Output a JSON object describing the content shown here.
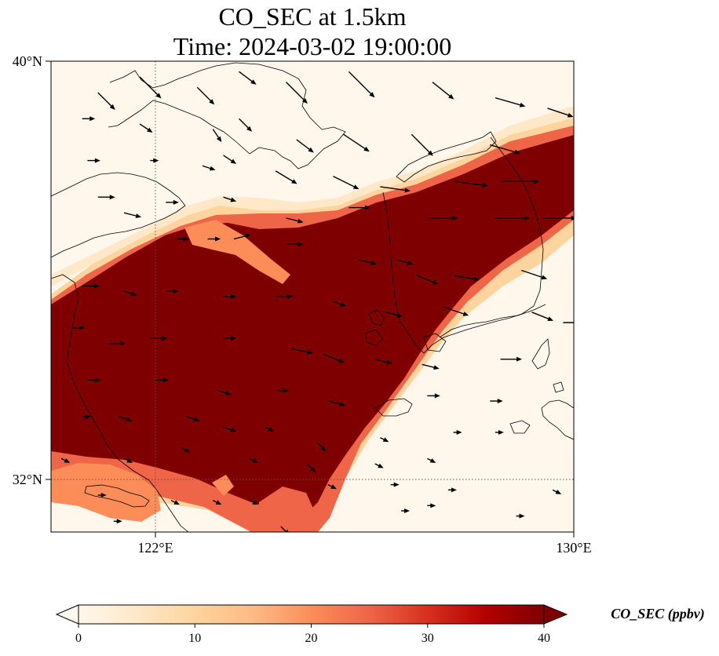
{
  "title": {
    "line1": "CO_SEC at 1.5km",
    "line2": "Time: 2024-03-02 19:00:00"
  },
  "map": {
    "lon_range": [
      120,
      130
    ],
    "lat_range": [
      31,
      40
    ],
    "lon_ticks": [
      {
        "value": 122,
        "label": "122°E"
      },
      {
        "value": 130,
        "label": "130°E"
      }
    ],
    "lat_ticks": [
      {
        "value": 40,
        "label": "40°N"
      },
      {
        "value": 32,
        "label": "32°N"
      }
    ],
    "gridlines": "dotted"
  },
  "field": {
    "variable": "CO_SEC",
    "level": "1.5km",
    "pattern": "high-concentration plume band oriented SW-NE across the Yellow Sea",
    "colormap": "OrRd"
  },
  "colorbar": {
    "label": "CO_SEC (ppbv)",
    "min": 0,
    "max": 40,
    "extend": "both",
    "ticks": [
      {
        "value": 0,
        "label": "0"
      },
      {
        "value": 10,
        "label": "10"
      },
      {
        "value": 20,
        "label": "20"
      },
      {
        "value": 30,
        "label": "30"
      },
      {
        "value": 40,
        "label": "40"
      }
    ],
    "colors": [
      "#fff7ec",
      "#fee8c8",
      "#fdd49e",
      "#fdbb84",
      "#fc8d59",
      "#ef6548",
      "#d7301f",
      "#b30000",
      "#7f0000"
    ]
  },
  "wind": {
    "note": "wind vectors predominantly westerly to northwesterly",
    "vectors": [
      [
        120.9,
        39.4,
        0.4,
        -0.4
      ],
      [
        121.7,
        39.7,
        0.5,
        -0.5
      ],
      [
        122.8,
        39.5,
        0.4,
        -0.4
      ],
      [
        123.6,
        39.8,
        0.4,
        -0.3
      ],
      [
        124.5,
        39.6,
        0.5,
        -0.5
      ],
      [
        125.7,
        39.8,
        0.6,
        -0.6
      ],
      [
        127.3,
        39.6,
        0.5,
        -0.4
      ],
      [
        128.5,
        39.3,
        0.7,
        -0.2
      ],
      [
        129.5,
        39.1,
        0.6,
        -0.2
      ],
      [
        120.6,
        38.9,
        0.3,
        0.0
      ],
      [
        121.7,
        38.8,
        0.3,
        -0.2
      ],
      [
        123.1,
        38.7,
        0.2,
        -0.3
      ],
      [
        123.6,
        38.9,
        0.3,
        -0.3
      ],
      [
        124.7,
        38.5,
        0.4,
        -0.3
      ],
      [
        125.6,
        38.6,
        0.6,
        -0.4
      ],
      [
        126.9,
        38.6,
        0.5,
        -0.5
      ],
      [
        128.4,
        38.4,
        0.7,
        -0.2
      ],
      [
        120.7,
        38.1,
        0.3,
        0.0
      ],
      [
        121.9,
        38.1,
        0.2,
        0.0
      ],
      [
        122.9,
        38.0,
        0.3,
        -0.1
      ],
      [
        123.3,
        38.2,
        0.3,
        -0.2
      ],
      [
        124.3,
        37.9,
        0.5,
        -0.3
      ],
      [
        125.4,
        37.8,
        0.6,
        -0.3
      ],
      [
        126.3,
        37.6,
        0.7,
        -0.1
      ],
      [
        127.7,
        37.7,
        0.8,
        -0.1
      ],
      [
        128.6,
        37.7,
        0.9,
        0.0
      ],
      [
        120.9,
        37.4,
        0.4,
        0.0
      ],
      [
        121.4,
        37.1,
        0.4,
        -0.1
      ],
      [
        122.2,
        37.3,
        0.3,
        0.0
      ],
      [
        123.3,
        37.4,
        0.3,
        -0.1
      ],
      [
        124.5,
        37.0,
        0.4,
        -0.1
      ],
      [
        125.7,
        37.2,
        0.5,
        0.0
      ],
      [
        127.2,
        37.0,
        0.7,
        0.0
      ],
      [
        128.5,
        37.0,
        0.8,
        0.0
      ],
      [
        129.4,
        37.0,
        0.8,
        0.0
      ],
      [
        122.4,
        36.6,
        0.3,
        0.0
      ],
      [
        123.0,
        36.6,
        0.3,
        0.0
      ],
      [
        123.5,
        36.6,
        0.4,
        0.1
      ],
      [
        124.5,
        36.5,
        0.4,
        0.0
      ],
      [
        125.9,
        36.2,
        0.4,
        -0.1
      ],
      [
        126.6,
        36.2,
        0.4,
        -0.1
      ],
      [
        127.0,
        35.9,
        0.5,
        -0.2
      ],
      [
        127.7,
        35.9,
        0.6,
        -0.1
      ],
      [
        129.0,
        36.0,
        0.6,
        -0.2
      ],
      [
        120.6,
        35.7,
        0.4,
        0.0
      ],
      [
        121.4,
        35.6,
        0.3,
        -0.1
      ],
      [
        122.2,
        35.6,
        0.3,
        0.0
      ],
      [
        123.3,
        35.5,
        0.3,
        0.0
      ],
      [
        124.3,
        35.5,
        0.4,
        0.0
      ],
      [
        125.4,
        35.4,
        0.3,
        -0.1
      ],
      [
        126.4,
        35.2,
        0.4,
        -0.1
      ],
      [
        127.5,
        35.3,
        0.6,
        -0.2
      ],
      [
        129.2,
        35.2,
        0.5,
        -0.2
      ],
      [
        129.8,
        35.0,
        0.6,
        0.0
      ],
      [
        120.4,
        34.9,
        0.3,
        0.0
      ],
      [
        121.1,
        34.6,
        0.4,
        0.0
      ],
      [
        121.9,
        34.7,
        0.4,
        0.0
      ],
      [
        123.3,
        34.7,
        0.3,
        0.0
      ],
      [
        124.6,
        34.5,
        0.5,
        -0.1
      ],
      [
        125.2,
        34.4,
        0.5,
        -0.2
      ],
      [
        126.2,
        34.3,
        0.4,
        -0.1
      ],
      [
        127.1,
        34.2,
        0.4,
        -0.1
      ],
      [
        128.6,
        34.3,
        0.5,
        0.0
      ],
      [
        120.7,
        33.9,
        0.3,
        0.0
      ],
      [
        122.0,
        33.9,
        0.3,
        0.0
      ],
      [
        123.2,
        33.7,
        0.3,
        -0.1
      ],
      [
        124.3,
        33.7,
        0.3,
        0.0
      ],
      [
        125.3,
        33.5,
        0.4,
        -0.1
      ],
      [
        127.2,
        33.6,
        0.3,
        0.0
      ],
      [
        128.4,
        33.5,
        0.3,
        0.0
      ],
      [
        120.6,
        33.2,
        0.2,
        0.0
      ],
      [
        121.3,
        33.2,
        0.3,
        -0.1
      ],
      [
        122.6,
        33.2,
        0.3,
        -0.1
      ],
      [
        123.3,
        33.0,
        0.3,
        -0.1
      ],
      [
        124.1,
        33.0,
        0.2,
        -0.1
      ],
      [
        125.1,
        32.7,
        0.2,
        -0.2
      ],
      [
        126.3,
        32.8,
        0.2,
        -0.1
      ],
      [
        127.7,
        32.9,
        0.2,
        0.0
      ],
      [
        128.5,
        32.9,
        0.2,
        0.0
      ],
      [
        120.2,
        32.4,
        0.2,
        -0.1
      ],
      [
        121.4,
        32.4,
        0.2,
        -0.1
      ],
      [
        122.5,
        32.6,
        0.2,
        -0.1
      ],
      [
        123.8,
        32.4,
        0.2,
        -0.1
      ],
      [
        124.9,
        32.3,
        0.2,
        -0.2
      ],
      [
        126.2,
        32.3,
        0.2,
        -0.1
      ],
      [
        127.2,
        32.4,
        0.2,
        -0.1
      ],
      [
        120.9,
        31.7,
        0.2,
        0.0
      ],
      [
        122.3,
        31.6,
        0.2,
        -0.1
      ],
      [
        123.1,
        31.6,
        0.2,
        -0.1
      ],
      [
        123.8,
        31.6,
        0.2,
        -0.1
      ],
      [
        125.3,
        31.9,
        0.2,
        -0.1
      ],
      [
        126.5,
        31.9,
        0.2,
        0.0
      ],
      [
        127.6,
        31.8,
        0.2,
        0.0
      ],
      [
        129.6,
        31.8,
        0.2,
        -0.1
      ],
      [
        121.2,
        31.2,
        0.2,
        0.0
      ],
      [
        124.4,
        31.1,
        0.2,
        -0.2
      ],
      [
        126.7,
        31.4,
        0.2,
        0.0
      ],
      [
        127.2,
        31.5,
        0.2,
        0.0
      ],
      [
        128.9,
        31.3,
        0.2,
        0.0
      ]
    ]
  }
}
